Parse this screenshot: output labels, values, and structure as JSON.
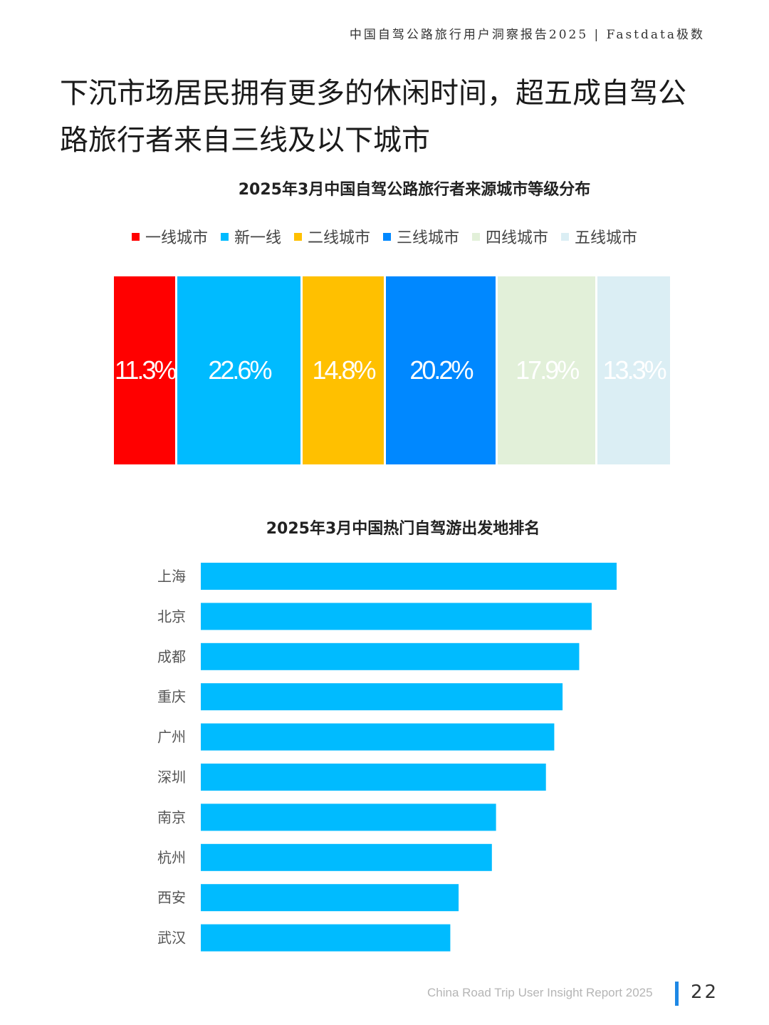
{
  "header": {
    "report": "中国自驾公路旅行用户洞察报告2025 | Fastdata极数"
  },
  "headline": {
    "line1": "下沉市场居民拥有更多的休闲时间，超五成自驾公",
    "line2": "路旅行者来自三线及以下城市"
  },
  "footer": {
    "subtitle": "China Road Trip User Insight Report 2025",
    "page": "22"
  },
  "colors": {
    "bar": "#00bbff"
  },
  "chart_data": [
    {
      "type": "bar",
      "orientation": "stacked-horizontal",
      "title": "2025年3月中国自驾公路旅行者来源城市等级分布",
      "legend_position": "top",
      "categories": [
        "一线城市",
        "新一线",
        "二线城市",
        "三线城市",
        "四线城市",
        "五线城市"
      ],
      "values": [
        11.3,
        22.6,
        14.8,
        20.2,
        17.9,
        13.3
      ],
      "labels": [
        "11.3%",
        "22.6%",
        "14.8%",
        "20.2%",
        "17.9%",
        "13.3%"
      ],
      "colors": [
        "#ff0000",
        "#00bbff",
        "#ffc000",
        "#0088ff",
        "#e2f0d9",
        "#dbeef4"
      ],
      "unit": "%"
    },
    {
      "type": "bar",
      "orientation": "horizontal",
      "title": "2025年3月中国热门自驾游出发地排名",
      "categories": [
        "上海",
        "北京",
        "成都",
        "重庆",
        "广州",
        "深圳",
        "南京",
        "杭州",
        "西安",
        "武汉"
      ],
      "values": [
        100,
        94,
        91,
        87,
        85,
        83,
        71,
        70,
        62,
        60
      ],
      "xlim": [
        0,
        100
      ]
    }
  ]
}
